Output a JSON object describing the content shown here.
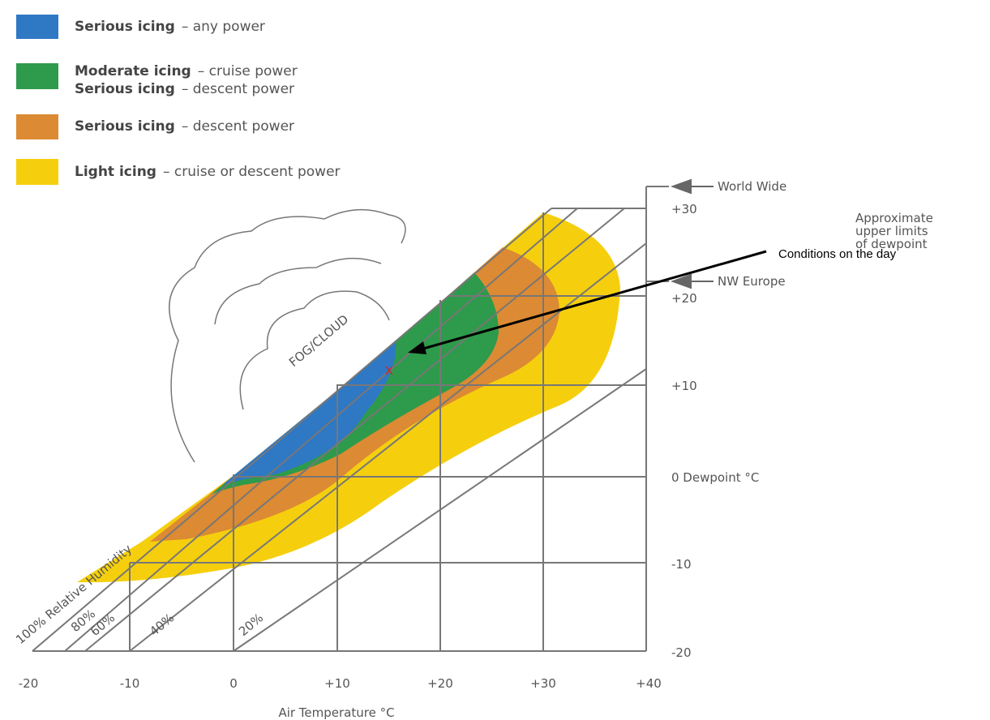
{
  "legend": [
    {
      "lines": [
        {
          "bold": "Serious icing",
          "desc": "– any power"
        }
      ]
    },
    {
      "lines": [
        {
          "bold": "Moderate icing",
          "desc": "– cruise power"
        },
        {
          "bold": "Serious icing",
          "desc": "– descent power"
        }
      ]
    },
    {
      "lines": [
        {
          "bold": "Serious icing",
          "desc": "– descent power"
        }
      ]
    },
    {
      "lines": [
        {
          "bold": "Light icing",
          "desc": "– cruise or descent power"
        }
      ]
    }
  ],
  "dewpoint_labels": [
    "+30",
    "+20",
    "+10",
    "0 Dewpoint °C",
    "-10",
    "-20"
  ],
  "temperature_labels": [
    "-20",
    "-10",
    "0",
    "+10",
    "+20",
    "+30",
    "+40"
  ],
  "x_axis_title": "Air Temperature °C",
  "limits": [
    "World Wide",
    "NW Europe"
  ],
  "limits_note": [
    "Approximate",
    "upper limits",
    "of dewpoint"
  ],
  "humidity_labels": [
    "100% Relative Humidity",
    "80%",
    "60%",
    "40%",
    "20%"
  ],
  "fog_label": "FOG/CLOUD",
  "marker": "X",
  "annotation": "Conditions on the day"
}
